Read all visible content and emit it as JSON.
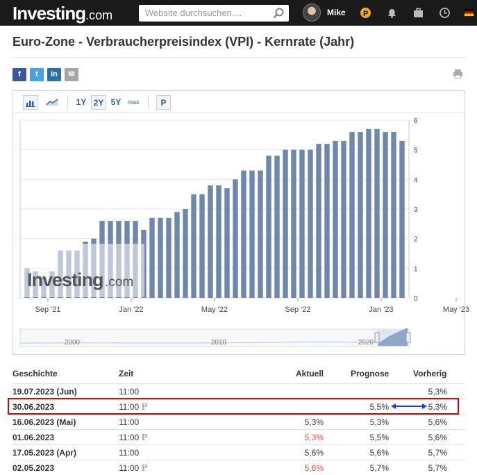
{
  "header": {
    "logo_main": "Investing",
    "logo_suffix": ".com",
    "search_placeholder": "Website durchsuchen....",
    "username": "Mike"
  },
  "page": {
    "title": "Euro-Zone - Verbraucherpreisindex (VPI) - Kernrate (Jahr)"
  },
  "share": {
    "facebook": "f",
    "twitter": "t",
    "linkedin": "in",
    "email": "✉"
  },
  "chart_toolbar": {
    "ranges": [
      "1Y",
      "2Y",
      "5Y",
      "max"
    ],
    "p_label": "P",
    "active": "2Y"
  },
  "chart_data": {
    "type": "bar",
    "bar_color": "#6f86ad",
    "watermark": "Investing.com",
    "values": [
      1.0,
      0.9,
      0.7,
      0.9,
      1.6,
      1.6,
      1.6,
      1.9,
      2.0,
      2.6,
      2.6,
      2.6,
      2.6,
      2.6,
      2.3,
      2.7,
      2.7,
      2.7,
      2.9,
      3.0,
      3.5,
      3.5,
      3.8,
      3.8,
      3.7,
      4.0,
      4.3,
      4.3,
      4.3,
      4.8,
      4.8,
      5.0,
      5.0,
      5.0,
      5.0,
      5.2,
      5.2,
      5.3,
      5.3,
      5.6,
      5.6,
      5.7,
      5.7,
      5.6,
      5.6,
      5.3
    ],
    "x_tick_labels": [
      "Sep '21",
      "Jan '22",
      "May '22",
      "Sep '22",
      "Jan '23",
      "May '23"
    ],
    "x_tick_index": [
      2.5,
      12.5,
      22.5,
      32.5,
      42.5,
      51.5
    ],
    "ylim": [
      0,
      6
    ],
    "y_ticks": [
      0,
      1,
      2,
      3,
      4,
      5,
      6
    ],
    "navigator_labels": [
      "2000",
      "2010",
      "2020"
    ]
  },
  "table": {
    "headers": {
      "history": "Geschichte",
      "time": "Zeit",
      "actual": "Aktuell",
      "forecast": "Prognose",
      "previous": "Vorherig"
    },
    "rows": [
      {
        "date": "19.07.2023 (Jun)",
        "time": "11:00",
        "p": "",
        "actual": "",
        "forecast": "",
        "previous": "5,3%"
      },
      {
        "date": "30.06.2023",
        "time": "11:00",
        "p": "P",
        "actual": "",
        "forecast": "5,5%",
        "previous": "5,3%"
      },
      {
        "date": "16.06.2023 (Mai)",
        "time": "11:00",
        "p": "",
        "actual": "5,3%",
        "forecast": "5,3%",
        "previous": "5,6%"
      },
      {
        "date": "01.06.2023",
        "time": "11:00",
        "p": "P",
        "actual": "5,3%",
        "forecast": "5,5%",
        "previous": "5,6%"
      },
      {
        "date": "17.05.2023 (Apr)",
        "time": "11:00",
        "p": "",
        "actual": "5,6%",
        "forecast": "5,6%",
        "previous": "5,7%"
      },
      {
        "date": "02.05.2023",
        "time": "11:00",
        "p": "P",
        "actual": "5,6%",
        "forecast": "5,7%",
        "previous": "5,7%"
      }
    ],
    "actual_red_rows": [
      3,
      5
    ]
  }
}
